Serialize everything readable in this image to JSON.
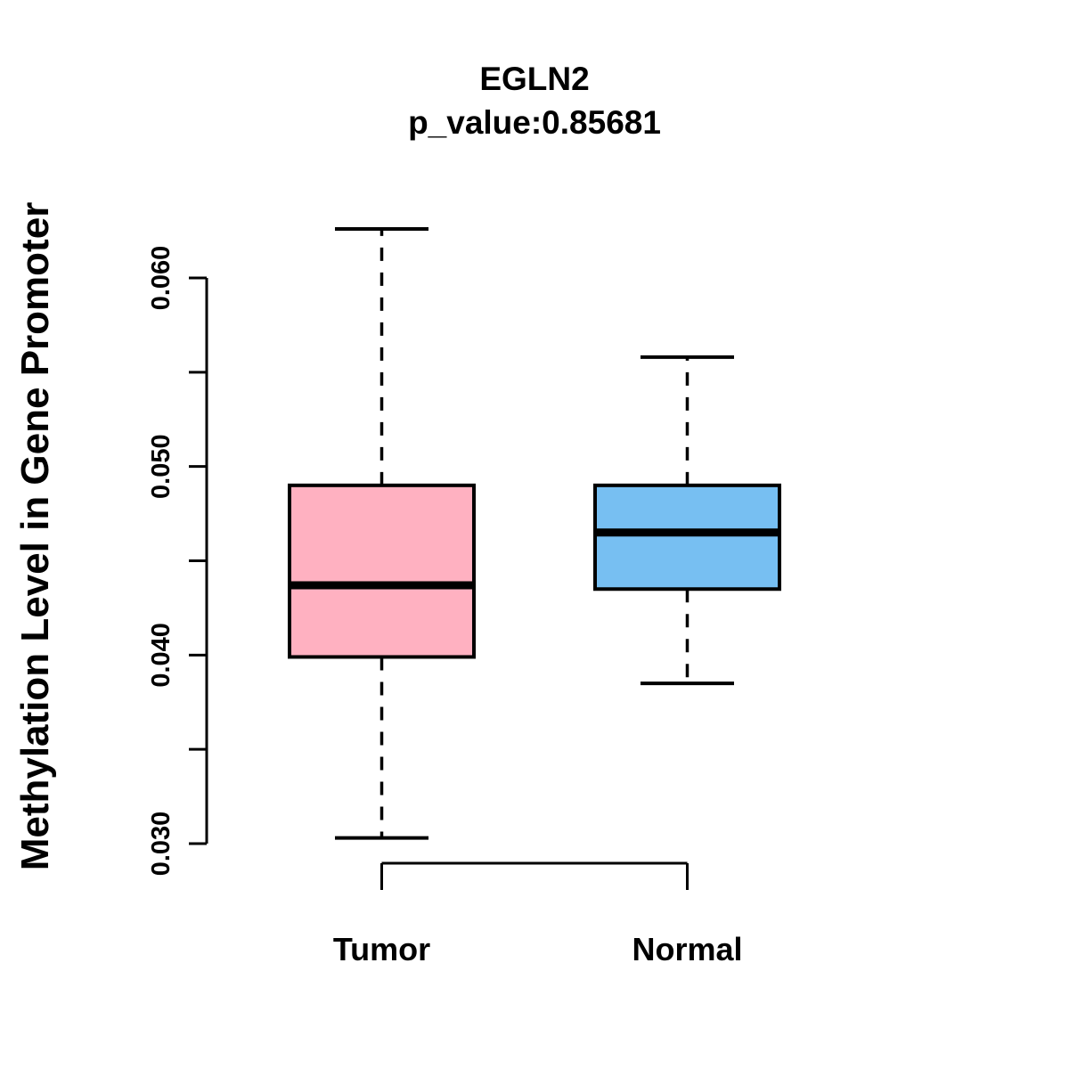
{
  "chart_data": {
    "type": "boxplot",
    "title": "EGLN2",
    "subtitle": "p_value:0.85681",
    "ylabel": "Methylation Level in Gene Promoter",
    "xlabel": "",
    "categories": [
      "Tumor",
      "Normal"
    ],
    "y_axis": {
      "min": 0.03,
      "max": 0.06,
      "tick_step": 0.005,
      "labeled_tick_values": [
        0.03,
        0.04,
        0.05,
        0.06
      ],
      "labeled_tick_labels": [
        "0.030",
        "0.040",
        "0.050",
        "0.060"
      ],
      "decimals": 3
    },
    "series": [
      {
        "name": "Tumor",
        "fill_color": "#FFB1C1",
        "stats": {
          "lower_whisker": 0.0303,
          "q1": 0.0399,
          "median": 0.0437,
          "q3": 0.049,
          "upper_whisker": 0.0626
        }
      },
      {
        "name": "Normal",
        "fill_color": "#77BFF2",
        "stats": {
          "lower_whisker": 0.0385,
          "q1": 0.0435,
          "median": 0.0465,
          "q3": 0.049,
          "upper_whisker": 0.0558
        }
      }
    ],
    "stroke_color": "#000000",
    "grid": false,
    "legend": "none"
  }
}
